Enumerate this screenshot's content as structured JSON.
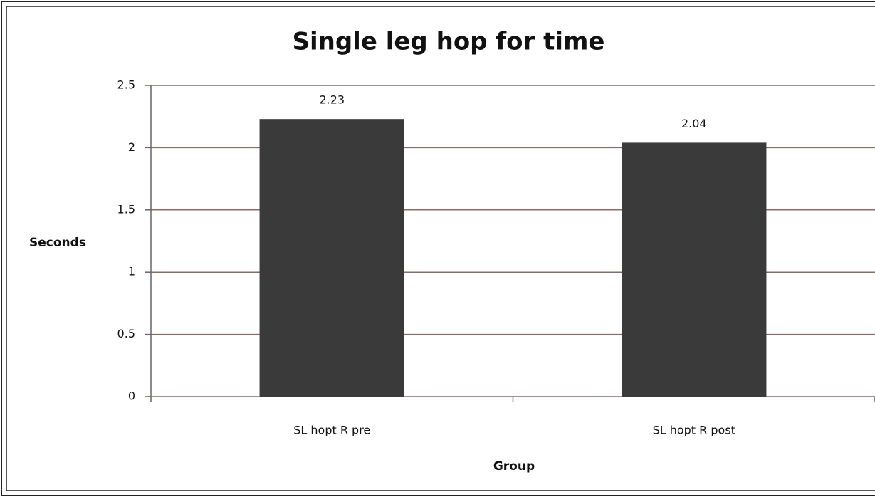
{
  "chart_data": {
    "type": "bar",
    "title": "Single leg hop for time",
    "x_label": "Group",
    "y_label": "Seconds",
    "categories": [
      "SL hopt R pre",
      "SL hopt R post"
    ],
    "values": [
      2.23,
      2.04
    ],
    "color": "#3b3a3a",
    "ylim": [
      0,
      2.5
    ],
    "yticks": [
      0,
      0.5,
      1,
      1.5,
      2,
      2.5
    ],
    "grid": true
  }
}
